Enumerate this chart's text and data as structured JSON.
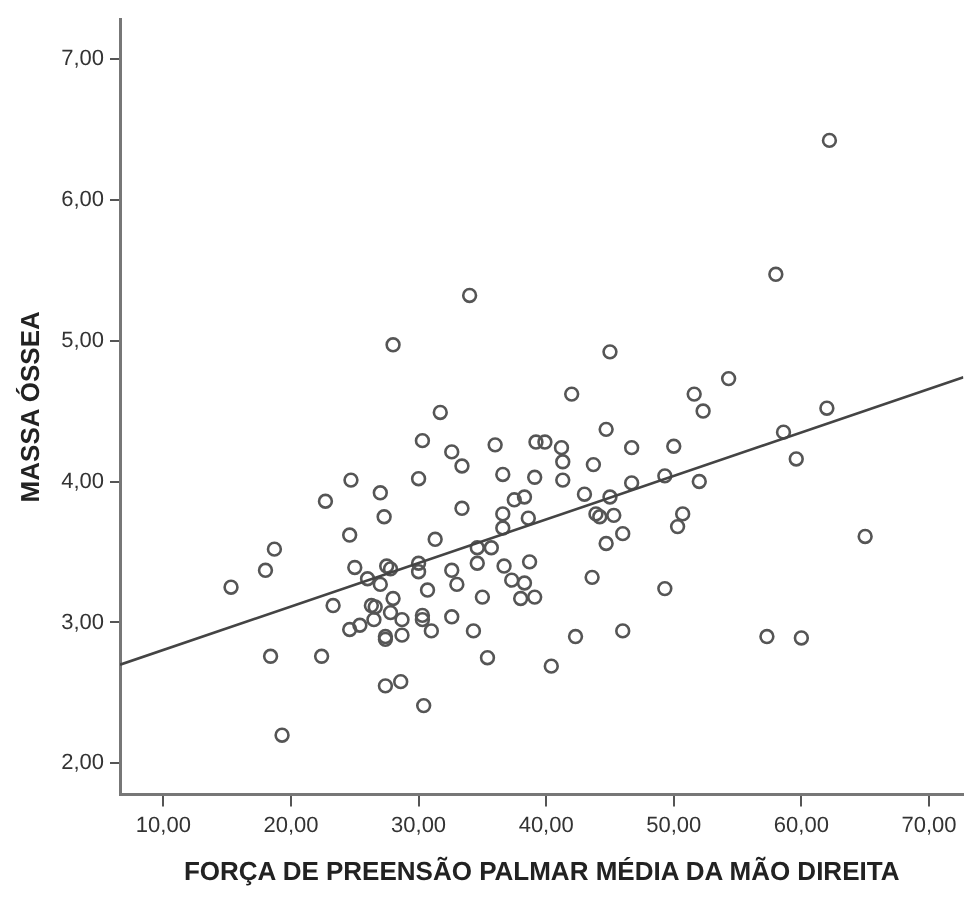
{
  "chart_data": {
    "type": "scatter",
    "xlabel": "FORÇA DE PREENSÃO PALMAR MÉDIA DA MÃO DIREITA",
    "ylabel": "MASSA ÓSSEA",
    "xlim": [
      6.6,
      72.7
    ],
    "ylim": [
      1.78,
      7.28
    ],
    "xticks": [
      {
        "value": 10,
        "label": "10,00"
      },
      {
        "value": 20,
        "label": "20,00"
      },
      {
        "value": 30,
        "label": "30,00"
      },
      {
        "value": 40,
        "label": "40,00"
      },
      {
        "value": 50,
        "label": "50,00"
      },
      {
        "value": 60,
        "label": "60,00"
      },
      {
        "value": 70,
        "label": "70,00"
      }
    ],
    "yticks": [
      {
        "value": 2,
        "label": "2,00"
      },
      {
        "value": 3,
        "label": "3,00"
      },
      {
        "value": 4,
        "label": "4,00"
      },
      {
        "value": 5,
        "label": "5,00"
      },
      {
        "value": 6,
        "label": "6,00"
      },
      {
        "value": 7,
        "label": "7,00"
      }
    ],
    "grid": false,
    "legend": false,
    "marker": "circle",
    "series": [
      {
        "color": "#555555",
        "x": [
          62.2,
          34.0,
          28.0,
          31.7,
          30.3,
          32.6,
          33.4,
          36.0,
          36.6,
          24.7,
          30.0,
          27.0,
          22.7,
          27.3,
          33.4,
          36.6,
          37.5,
          38.3,
          38.6,
          39.2,
          39.9,
          39.1,
          58.0,
          45.0,
          42.0,
          51.6,
          54.3,
          52.3,
          62.0,
          58.6,
          59.6,
          41.2,
          44.7,
          46.7,
          50.0,
          41.3,
          41.3,
          43.7,
          43.0,
          45.0,
          46.7,
          49.3,
          52.0,
          43.9,
          44.2,
          45.3,
          50.7,
          50.3,
          36.6,
          46.0,
          44.7,
          65.0,
          36.7,
          38.7,
          37.3,
          38.3,
          38.0,
          39.1,
          43.6,
          49.3,
          42.3,
          46.0,
          40.4,
          57.3,
          60.0,
          24.6,
          18.7,
          18.0,
          15.3,
          31.3,
          34.6,
          35.7,
          25.0,
          27.5,
          27.8,
          30.0,
          30.0,
          32.6,
          34.6,
          26.0,
          27.0,
          33.0,
          28.0,
          30.7,
          35.0,
          23.3,
          26.3,
          26.6,
          27.8,
          28.7,
          30.3,
          30.3,
          32.6,
          24.6,
          25.4,
          26.5,
          27.4,
          27.4,
          28.7,
          31.0,
          34.3,
          18.4,
          22.4,
          35.4,
          27.4,
          28.6,
          30.4,
          19.3
        ],
        "values": [
          6.42,
          5.32,
          4.97,
          4.49,
          4.29,
          4.21,
          4.11,
          4.26,
          4.05,
          4.01,
          4.02,
          3.92,
          3.86,
          3.75,
          3.81,
          3.77,
          3.87,
          3.89,
          3.74,
          4.28,
          4.28,
          4.03,
          5.47,
          4.92,
          4.62,
          4.62,
          4.73,
          4.5,
          4.52,
          4.35,
          4.16,
          4.24,
          4.37,
          4.24,
          4.25,
          4.14,
          4.01,
          4.12,
          3.91,
          3.89,
          3.99,
          4.04,
          4.0,
          3.77,
          3.75,
          3.76,
          3.77,
          3.68,
          3.67,
          3.63,
          3.56,
          3.61,
          3.4,
          3.43,
          3.3,
          3.28,
          3.17,
          3.18,
          3.32,
          3.24,
          2.9,
          2.94,
          2.69,
          2.9,
          2.89,
          3.62,
          3.52,
          3.37,
          3.25,
          3.59,
          3.53,
          3.53,
          3.39,
          3.4,
          3.38,
          3.42,
          3.36,
          3.37,
          3.42,
          3.31,
          3.27,
          3.27,
          3.17,
          3.23,
          3.18,
          3.12,
          3.12,
          3.11,
          3.07,
          3.02,
          3.05,
          3.02,
          3.04,
          2.95,
          2.98,
          3.02,
          2.9,
          2.88,
          2.91,
          2.94,
          2.94,
          2.76,
          2.76,
          2.75,
          2.55,
          2.58,
          2.41,
          2.2
        ]
      },
      {
        "type": "line",
        "color": "#444444",
        "marker": "none",
        "x": [
          6.6,
          72.7
        ],
        "values": [
          2.7,
          4.74
        ]
      }
    ]
  }
}
